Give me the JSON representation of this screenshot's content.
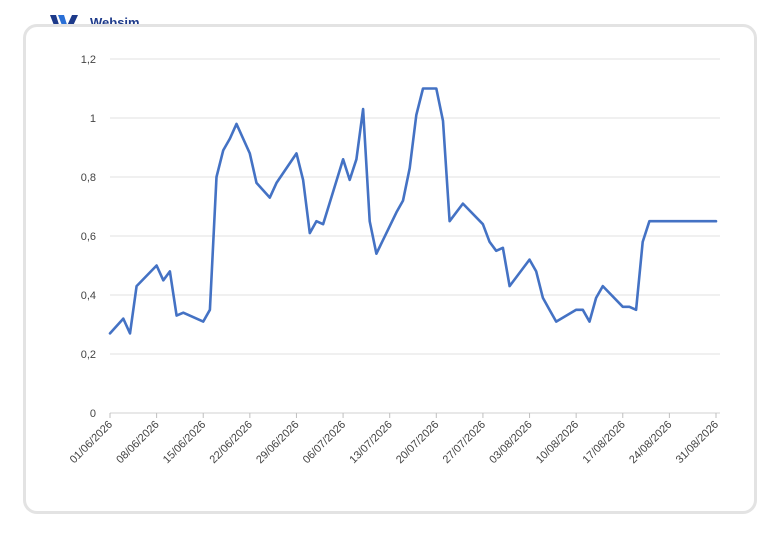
{
  "brand": {
    "name": "Websim",
    "logo_color": "#1d3a8a",
    "logo_accent": "#2a6fd6"
  },
  "chart_data": {
    "type": "line",
    "title": "",
    "xlabel": "",
    "ylabel": "",
    "ylim": [
      0,
      1.2
    ],
    "yticks": [
      "0",
      "0,2",
      "0,4",
      "0,6",
      "0,8",
      "1",
      "1,2"
    ],
    "xticks": [
      "01/06/2026",
      "08/06/2026",
      "15/06/2026",
      "22/06/2026",
      "29/06/2026",
      "06/07/2026",
      "13/07/2026",
      "20/07/2026",
      "27/07/2026",
      "03/08/2026",
      "10/08/2026",
      "17/08/2026",
      "24/08/2026",
      "31/08/2026"
    ],
    "grid": true,
    "line_color": "#4472c4",
    "series": [
      {
        "x": [
          "2026-06-01",
          "2026-06-03",
          "2026-06-04",
          "2026-06-05",
          "2026-06-08",
          "2026-06-09",
          "2026-06-10",
          "2026-06-11",
          "2026-06-12",
          "2026-06-15",
          "2026-06-16",
          "2026-06-17",
          "2026-06-18",
          "2026-06-19",
          "2026-06-20",
          "2026-06-22",
          "2026-06-23",
          "2026-06-25",
          "2026-06-26",
          "2026-06-29",
          "2026-06-30",
          "2026-07-01",
          "2026-07-02",
          "2026-07-03",
          "2026-07-06",
          "2026-07-07",
          "2026-07-08",
          "2026-07-09",
          "2026-07-10",
          "2026-07-11",
          "2026-07-14",
          "2026-07-15",
          "2026-07-16",
          "2026-07-17",
          "2026-07-18",
          "2026-07-20",
          "2026-07-21",
          "2026-07-22",
          "2026-07-24",
          "2026-07-27",
          "2026-07-28",
          "2026-07-29",
          "2026-07-30",
          "2026-07-31",
          "2026-08-03",
          "2026-08-04",
          "2026-08-05",
          "2026-08-06",
          "2026-08-07",
          "2026-08-10",
          "2026-08-11",
          "2026-08-12",
          "2026-08-13",
          "2026-08-14",
          "2026-08-17",
          "2026-08-18",
          "2026-08-19",
          "2026-08-20",
          "2026-08-21",
          "2026-08-24",
          "2026-08-25",
          "2026-08-26",
          "2026-08-27",
          "2026-08-31"
        ],
        "values": [
          0.27,
          0.32,
          0.27,
          0.43,
          0.5,
          0.45,
          0.48,
          0.33,
          0.34,
          0.31,
          0.35,
          0.8,
          0.89,
          0.93,
          0.98,
          0.88,
          0.78,
          0.73,
          0.78,
          0.88,
          0.79,
          0.61,
          0.65,
          0.64,
          0.86,
          0.79,
          0.86,
          1.03,
          0.65,
          0.54,
          0.68,
          0.72,
          0.83,
          1.01,
          1.1,
          1.1,
          0.99,
          0.65,
          0.71,
          0.64,
          0.58,
          0.55,
          0.56,
          0.43,
          0.52,
          0.48,
          0.39,
          0.35,
          0.31,
          0.35,
          0.35,
          0.31,
          0.39,
          0.43,
          0.36,
          0.36,
          0.35,
          0.58,
          0.65,
          0.65,
          0.65,
          0.65,
          0.65,
          0.65
        ]
      }
    ]
  }
}
